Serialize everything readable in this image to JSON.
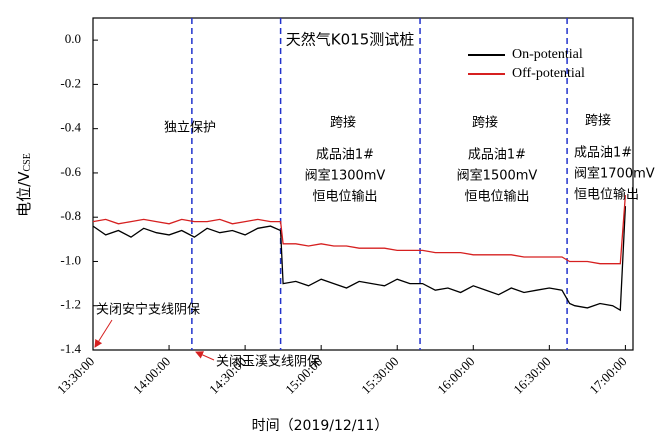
{
  "chart_data": {
    "type": "line",
    "title": "天然气K015测试桩",
    "x_label": "时间（2019/12/11）",
    "y_label": {
      "text": "电位/V",
      "subscript": "CSE"
    },
    "x": [
      "13:30:00",
      "13:35:00",
      "13:40:00",
      "13:45:00",
      "13:50:00",
      "13:55:00",
      "14:00:00",
      "14:05:00",
      "14:10:00",
      "14:15:00",
      "14:20:00",
      "14:25:00",
      "14:30:00",
      "14:35:00",
      "14:40:00",
      "14:44:00",
      "14:45:00",
      "14:50:00",
      "14:55:00",
      "15:00:00",
      "15:05:00",
      "15:10:00",
      "15:15:00",
      "15:20:00",
      "15:25:00",
      "15:30:00",
      "15:35:00",
      "15:40:00",
      "15:45:00",
      "15:50:00",
      "15:55:00",
      "16:00:00",
      "16:05:00",
      "16:10:00",
      "16:15:00",
      "16:20:00",
      "16:25:00",
      "16:30:00",
      "16:35:00",
      "16:38:00",
      "16:40:00",
      "16:45:00",
      "16:50:00",
      "16:55:00",
      "16:58:00",
      "17:00:00"
    ],
    "series": [
      {
        "name": "On-potential",
        "color": "#000000",
        "values": [
          -0.84,
          -0.88,
          -0.86,
          -0.89,
          -0.85,
          -0.87,
          -0.88,
          -0.86,
          -0.89,
          -0.85,
          -0.87,
          -0.86,
          -0.88,
          -0.85,
          -0.84,
          -0.86,
          -1.1,
          -1.09,
          -1.11,
          -1.08,
          -1.1,
          -1.12,
          -1.09,
          -1.1,
          -1.11,
          -1.08,
          -1.1,
          -1.1,
          -1.13,
          -1.12,
          -1.14,
          -1.11,
          -1.13,
          -1.15,
          -1.12,
          -1.14,
          -1.13,
          -1.12,
          -1.13,
          -1.19,
          -1.2,
          -1.21,
          -1.19,
          -1.2,
          -1.22,
          -0.75
        ]
      },
      {
        "name": "Off-potential",
        "color": "#d62020",
        "values": [
          -0.82,
          -0.81,
          -0.83,
          -0.82,
          -0.81,
          -0.82,
          -0.83,
          -0.81,
          -0.82,
          -0.82,
          -0.81,
          -0.83,
          -0.82,
          -0.81,
          -0.82,
          -0.82,
          -0.92,
          -0.92,
          -0.93,
          -0.92,
          -0.93,
          -0.93,
          -0.94,
          -0.94,
          -0.94,
          -0.95,
          -0.95,
          -0.95,
          -0.96,
          -0.96,
          -0.96,
          -0.97,
          -0.97,
          -0.97,
          -0.97,
          -0.98,
          -0.98,
          -0.98,
          -0.98,
          -1.0,
          -1.0,
          -1.0,
          -1.01,
          -1.01,
          -1.01,
          -0.7
        ]
      }
    ],
    "xlim": [
      "13:30:00",
      "17:03:00"
    ],
    "xticks": [
      "13:30:00",
      "14:00:00",
      "14:30:00",
      "15:00:00",
      "15:30:00",
      "16:00:00",
      "16:30:00",
      "17:00:00"
    ],
    "ylim": [
      -1.4,
      0.1
    ],
    "yticks": [
      {
        "value": 0,
        "label": "0.0"
      },
      -0.2,
      -0.4,
      -0.6,
      -0.8,
      {
        "value": -1,
        "label": "-1.0"
      },
      -1.2,
      -1.4
    ],
    "vlines": [
      "14:09:00",
      "14:44:00",
      "15:39:00",
      "16:37:00"
    ],
    "vline_color": "#2233cc",
    "legend": "upper right",
    "region_labels": [
      {
        "lines": [
          "独立保护"
        ]
      },
      {
        "lines": [
          "跨接",
          "成品油1#",
          "阀室1300mV",
          "恒电位输出"
        ]
      },
      {
        "lines": [
          "跨接",
          "成品油1#",
          "阀室1500mV",
          "恒电位输出"
        ]
      },
      {
        "lines": [
          "跨接",
          "成品油1#",
          "阀室1700mV",
          "恒电位输出"
        ]
      }
    ],
    "arrow_notes": [
      "关闭安宁支线阴保",
      "关闭玉溪支线阴保"
    ]
  }
}
